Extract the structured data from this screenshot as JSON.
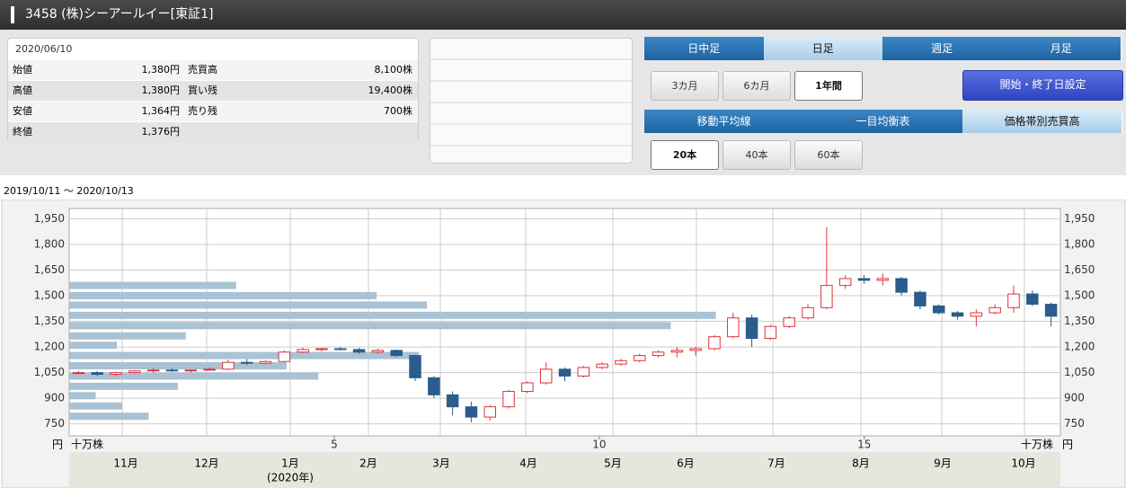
{
  "header": {
    "title": "3458 (株)シーアールイー[東証1]"
  },
  "info": {
    "date": "2020/06/10",
    "rows": [
      [
        "始値",
        "1,380円",
        "売買高",
        "8,100株"
      ],
      [
        "高値",
        "1,380円",
        "買い残",
        "19,400株"
      ],
      [
        "安値",
        "1,364円",
        "売り残",
        "700株"
      ],
      [
        "終値",
        "1,376円",
        "",
        ""
      ]
    ]
  },
  "tabs": {
    "period": [
      "日中足",
      "日足",
      "週足",
      "月足"
    ],
    "range": [
      "3カ月",
      "6カ月",
      "1年間"
    ],
    "date_button": "開始・終了日設定",
    "indicators": [
      "移動平均線",
      "一目均衡表",
      "価格帯別売買高"
    ],
    "bars": [
      "20本",
      "40本",
      "60本"
    ]
  },
  "date_range": "2019/10/11 〜 2020/10/13",
  "chart": {
    "type": "candlestick",
    "price_unit": "円",
    "volume_unit": "十万株",
    "ylim": [
      680,
      2010
    ],
    "yticks": [
      {
        "value": 750,
        "label": "750"
      },
      {
        "value": 900,
        "label": "900"
      },
      {
        "value": 1050,
        "label": "1,050"
      },
      {
        "value": 1200,
        "label": "1,200"
      },
      {
        "value": 1350,
        "label": "1,350"
      },
      {
        "value": 1500,
        "label": "1,500"
      },
      {
        "value": 1650,
        "label": "1,650"
      },
      {
        "value": 1800,
        "label": "1,800"
      },
      {
        "value": 1950,
        "label": "1,950"
      }
    ],
    "xlim": [
      0,
      18.7
    ],
    "xticks": [
      5,
      10,
      15
    ],
    "months": [
      "11月",
      "12月",
      "1月",
      "2月",
      "3月",
      "4月",
      "5月",
      "6月",
      "7月",
      "8月",
      "9月",
      "10月"
    ],
    "year_label": "(2020年)",
    "open": [
      1045,
      1050,
      1040,
      1050,
      1060,
      1065,
      1060,
      1065,
      1070,
      1110,
      1105,
      1115,
      1170,
      1185,
      1190,
      1185,
      1170,
      1180,
      1150,
      1020,
      920,
      850,
      790,
      850,
      940,
      990,
      1070,
      1030,
      1080,
      1100,
      1120,
      1150,
      1170,
      1180,
      1190,
      1260,
      1370,
      1250,
      1320,
      1370,
      1430,
      1560,
      1600,
      1590,
      1600,
      1520,
      1440,
      1400,
      1380,
      1400,
      1430,
      1510,
      1450
    ],
    "high": [
      1060,
      1060,
      1055,
      1065,
      1075,
      1075,
      1070,
      1080,
      1125,
      1130,
      1120,
      1180,
      1195,
      1195,
      1200,
      1195,
      1190,
      1185,
      1155,
      1030,
      940,
      880,
      860,
      950,
      1000,
      1110,
      1080,
      1090,
      1110,
      1130,
      1160,
      1180,
      1200,
      1200,
      1270,
      1400,
      1390,
      1330,
      1380,
      1450,
      1900,
      1620,
      1620,
      1630,
      1610,
      1530,
      1450,
      1410,
      1420,
      1450,
      1560,
      1530,
      1460
    ],
    "low": [
      1040,
      1030,
      1030,
      1045,
      1050,
      1055,
      1050,
      1060,
      1065,
      1095,
      1100,
      1110,
      1165,
      1175,
      1180,
      1160,
      1160,
      1140,
      1000,
      900,
      800,
      760,
      770,
      840,
      930,
      980,
      1000,
      1020,
      1070,
      1090,
      1110,
      1140,
      1140,
      1150,
      1180,
      1250,
      1200,
      1240,
      1310,
      1360,
      1420,
      1540,
      1570,
      1560,
      1500,
      1420,
      1390,
      1360,
      1320,
      1390,
      1400,
      1440,
      1320
    ],
    "close": [
      1050,
      1040,
      1050,
      1060,
      1065,
      1060,
      1065,
      1070,
      1110,
      1105,
      1115,
      1170,
      1185,
      1190,
      1185,
      1170,
      1180,
      1150,
      1020,
      920,
      850,
      790,
      850,
      940,
      990,
      1070,
      1030,
      1080,
      1100,
      1120,
      1150,
      1170,
      1180,
      1190,
      1260,
      1370,
      1250,
      1320,
      1370,
      1430,
      1560,
      1600,
      1590,
      1600,
      1520,
      1440,
      1400,
      1380,
      1400,
      1430,
      1510,
      1450,
      1380
    ],
    "up_color": "#e0303a",
    "down_color": "#2a5d8c",
    "volume_profile": {
      "color": "#a9c2d4",
      "prices": [
        1560,
        1500,
        1445,
        1385,
        1325,
        1265,
        1210,
        1150,
        1090,
        1030,
        970,
        915,
        855,
        795
      ],
      "values": [
        3.15,
        5.8,
        6.75,
        12.2,
        11.35,
        2.2,
        0.9,
        6.6,
        4.1,
        4.7,
        2.05,
        0.5,
        1.0,
        1.5
      ]
    }
  }
}
